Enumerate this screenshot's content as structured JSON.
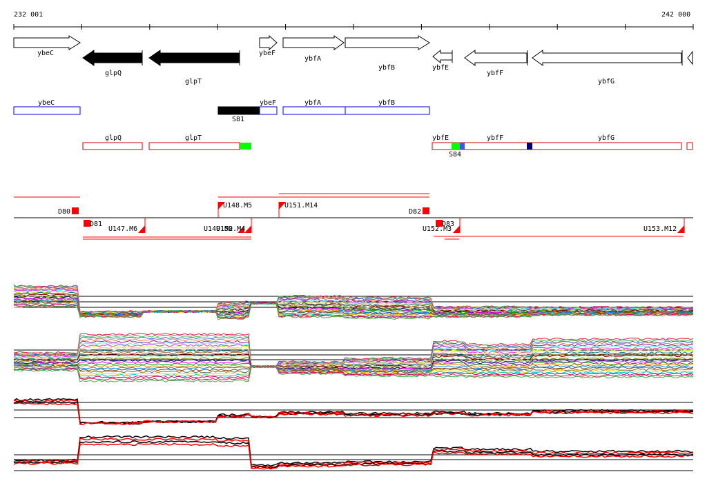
{
  "coords": {
    "start": "232 001",
    "end": "242 000"
  },
  "genes_top": [
    {
      "label": "ybeC",
      "fill": "white"
    },
    {
      "label": "glpQ",
      "fill": "black"
    },
    {
      "label": "glpT",
      "fill": "black"
    },
    {
      "label": "ybeF",
      "fill": "white"
    },
    {
      "label": "ybfA",
      "fill": "white"
    },
    {
      "label": "ybfB",
      "fill": "white"
    },
    {
      "label": "ybfE",
      "fill": "white"
    },
    {
      "label": "ybfF",
      "fill": "white"
    },
    {
      "label": "ybfG",
      "fill": "white"
    }
  ],
  "blue_track": {
    "labels": [
      "ybeC",
      "ybeF",
      "ybfA",
      "ybfB"
    ],
    "marker": "S81",
    "color": "#0000cc"
  },
  "red_track": {
    "labels": [
      "glpQ",
      "glpT",
      "ybfE",
      "ybfF",
      "ybfG"
    ],
    "marker": "S84",
    "color": "#cc0000"
  },
  "features": {
    "labels": [
      "D80",
      "D81",
      "D82",
      "D83",
      "U147.M6",
      "U148.M5",
      "U149.M2",
      "U150.M4",
      "U151.M14",
      "U152.M3",
      "U153.M12"
    ],
    "color": "#ff0000"
  },
  "colors": {
    "accent_red": "#ff0000",
    "green": "#00ff00",
    "navy": "#000080",
    "blue": "#0000cc"
  }
}
